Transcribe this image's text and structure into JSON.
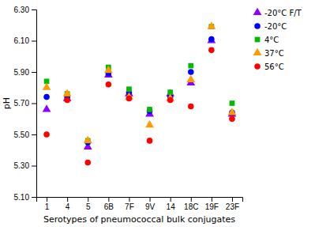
{
  "chart_data": {
    "type": "scatter",
    "xlabel": "Serotypes of pneumococcal bulk conjugates",
    "ylabel": "pH",
    "categories": [
      "1",
      "4",
      "5",
      "6B",
      "7F",
      "9V",
      "14",
      "18C",
      "19F",
      "23F"
    ],
    "series": [
      {
        "name": "-20°C F/T",
        "color": "#8B00FF",
        "marker": "triangle",
        "values": [
          5.66,
          5.73,
          5.42,
          5.88,
          5.76,
          5.63,
          5.76,
          5.83,
          6.1,
          5.63
        ]
      },
      {
        "name": "-20°C",
        "color": "#0000FF",
        "marker": "circle",
        "values": [
          5.74,
          5.74,
          5.45,
          5.89,
          5.77,
          5.65,
          5.74,
          5.9,
          6.11,
          5.64
        ]
      },
      {
        "name": "4°C",
        "color": "#00BB00",
        "marker": "square",
        "values": [
          5.84,
          5.76,
          5.46,
          5.93,
          5.79,
          5.66,
          5.77,
          5.94,
          6.19,
          5.7
        ]
      },
      {
        "name": "37°C",
        "color": "#FF9900",
        "marker": "triangle",
        "values": [
          5.8,
          5.76,
          5.46,
          5.91,
          5.74,
          5.56,
          5.73,
          5.85,
          6.19,
          5.64
        ]
      },
      {
        "name": "56°C",
        "color": "#FF0000",
        "marker": "circle",
        "values": [
          5.5,
          5.72,
          5.32,
          5.82,
          5.73,
          5.46,
          5.72,
          5.68,
          6.04,
          5.6
        ]
      }
    ],
    "ylim": [
      5.1,
      6.3
    ],
    "yticks": [
      {
        "value": 5.1,
        "label": "5.10"
      },
      {
        "value": 5.3,
        "label": "5.30"
      },
      {
        "value": 5.5,
        "label": "5.50"
      },
      {
        "value": 5.7,
        "label": "5.70"
      },
      {
        "value": 5.9,
        "label": "5.90"
      },
      {
        "value": 6.1,
        "label": "6.10"
      },
      {
        "value": 6.3,
        "label": "6.30"
      }
    ],
    "grid": false,
    "legend": "right"
  }
}
